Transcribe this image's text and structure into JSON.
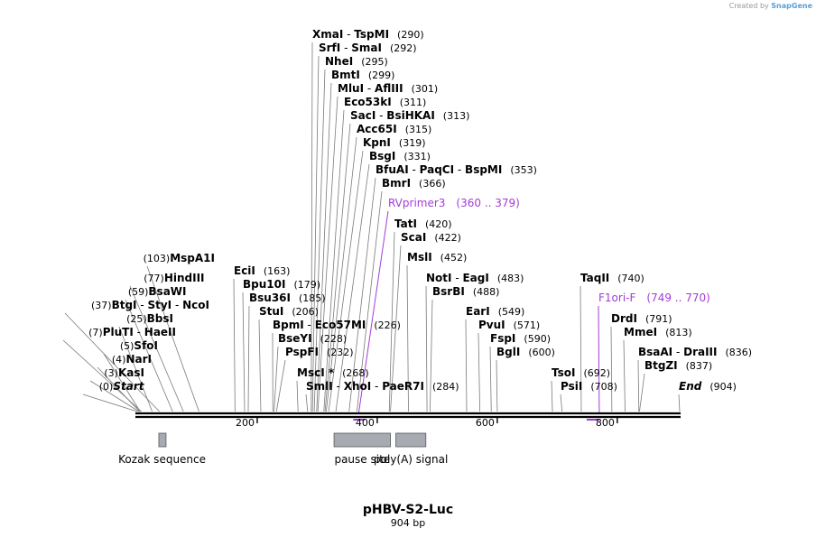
{
  "credit": {
    "prefix": "Created by",
    "brand": "SnapGene"
  },
  "title": "pHBV-S2-Luc",
  "subtitle": "904 bp",
  "length": 904,
  "ruler": [
    {
      "value": 200,
      "label": "200"
    },
    {
      "value": 400,
      "label": "400"
    },
    {
      "value": 600,
      "label": "600"
    },
    {
      "value": 800,
      "label": "800"
    }
  ],
  "features": [
    {
      "label": "Kozak sequence",
      "start": 36,
      "end": 47
    },
    {
      "label": "pause site",
      "start": 328,
      "end": 422
    },
    {
      "label": "poly(A) signal",
      "start": 431,
      "end": 481
    }
  ],
  "primers": [
    {
      "name": "RVprimer3",
      "range": "(360 .. 379)",
      "start": 360,
      "end": 379,
      "anchor": 369
    },
    {
      "name": "F1ori-F",
      "range": "(749 .. 770)",
      "start": 749,
      "end": 770,
      "anchor": 770
    }
  ],
  "sites": [
    {
      "parts": [
        "Start"
      ],
      "pos": "(0)",
      "site": 0,
      "emph": true
    },
    {
      "parts": [
        "KasI"
      ],
      "pos": "(3)",
      "site": 3
    },
    {
      "parts": [
        "NarI"
      ],
      "pos": "(4)",
      "site": 4
    },
    {
      "parts": [
        "SfoI"
      ],
      "pos": "(5)",
      "site": 5
    },
    {
      "parts": [
        "PluTI",
        "HaeII"
      ],
      "pos": "(7)",
      "site": 7
    },
    {
      "parts": [
        "BbsI"
      ],
      "pos": "(25)",
      "site": 25
    },
    {
      "parts": [
        "BtgI",
        "StyI",
        "NcoI"
      ],
      "pos": "(37)",
      "site": 37
    },
    {
      "parts": [
        "BsaWI"
      ],
      "pos": "(59)",
      "site": 59
    },
    {
      "parts": [
        "HindIII"
      ],
      "pos": "(77)",
      "site": 77
    },
    {
      "parts": [
        "MspA1I"
      ],
      "pos": "(103)",
      "site": 103
    },
    {
      "parts": [
        "EciI"
      ],
      "pos": "(163)",
      "site": 163
    },
    {
      "parts": [
        "Bpu10I"
      ],
      "pos": "(179)",
      "site": 179
    },
    {
      "parts": [
        "Bsu36I"
      ],
      "pos": "(185)",
      "site": 185
    },
    {
      "parts": [
        "StuI"
      ],
      "pos": "(206)",
      "site": 206
    },
    {
      "parts": [
        "BpmI",
        "Eco57MI"
      ],
      "pos": "(226)",
      "site": 226
    },
    {
      "parts": [
        "BseYI"
      ],
      "pos": "(228)",
      "site": 228
    },
    {
      "parts": [
        "PspFI"
      ],
      "pos": "(232)",
      "site": 232
    },
    {
      "parts": [
        "MscI *"
      ],
      "pos": "(268)",
      "site": 268
    },
    {
      "parts": [
        "SmlI",
        "XhoI",
        "PaeR7I"
      ],
      "pos": "(284)",
      "site": 284
    },
    {
      "parts": [
        "XmaI",
        "TspMI"
      ],
      "pos": "(290)",
      "site": 290
    },
    {
      "parts": [
        "SrfI",
        "SmaI"
      ],
      "pos": "(292)",
      "site": 292
    },
    {
      "parts": [
        "NheI"
      ],
      "pos": "(295)",
      "site": 295
    },
    {
      "parts": [
        "BmtI"
      ],
      "pos": "(299)",
      "site": 299
    },
    {
      "parts": [
        "MluI",
        "AflIII"
      ],
      "pos": "(301)",
      "site": 301
    },
    {
      "parts": [
        "Eco53kI"
      ],
      "pos": "(311)",
      "site": 311
    },
    {
      "parts": [
        "SacI",
        "BsiHKAI"
      ],
      "pos": "(313)",
      "site": 313
    },
    {
      "parts": [
        "Acc65I"
      ],
      "pos": "(315)",
      "site": 315
    },
    {
      "parts": [
        "KpnI"
      ],
      "pos": "(319)",
      "site": 319
    },
    {
      "parts": [
        "BsgI"
      ],
      "pos": "(331)",
      "site": 331
    },
    {
      "parts": [
        "BfuAI",
        "PaqCI",
        "BspMI"
      ],
      "pos": "(353)",
      "site": 353
    },
    {
      "parts": [
        "BmrI"
      ],
      "pos": "(366)",
      "site": 366
    },
    {
      "parts": [
        "TatI"
      ],
      "pos": "(420)",
      "site": 420
    },
    {
      "parts": [
        "ScaI"
      ],
      "pos": "(422)",
      "site": 422
    },
    {
      "parts": [
        "MslI"
      ],
      "pos": "(452)",
      "site": 452
    },
    {
      "parts": [
        "NotI",
        "EagI"
      ],
      "pos": "(483)",
      "site": 483
    },
    {
      "parts": [
        "BsrBI"
      ],
      "pos": "(488)",
      "site": 488
    },
    {
      "parts": [
        "EarI"
      ],
      "pos": "(549)",
      "site": 549
    },
    {
      "parts": [
        "PvuI"
      ],
      "pos": "(571)",
      "site": 571
    },
    {
      "parts": [
        "FspI"
      ],
      "pos": "(590)",
      "site": 590
    },
    {
      "parts": [
        "BglI"
      ],
      "pos": "(600)",
      "site": 600
    },
    {
      "parts": [
        "TsoI"
      ],
      "pos": "(692)",
      "site": 692
    },
    {
      "parts": [
        "PsiI"
      ],
      "pos": "(708)",
      "site": 708
    },
    {
      "parts": [
        "TaqII"
      ],
      "pos": "(740)",
      "site": 740
    },
    {
      "parts": [
        "DrdI"
      ],
      "pos": "(791)",
      "site": 791
    },
    {
      "parts": [
        "MmeI"
      ],
      "pos": "(813)",
      "site": 813
    },
    {
      "parts": [
        "BsaAI",
        "DraIII"
      ],
      "pos": "(836)",
      "site": 836
    },
    {
      "parts": [
        "BtgZI"
      ],
      "pos": "(837)",
      "site": 837
    },
    {
      "parts": [
        "End"
      ],
      "pos": "(904)",
      "site": 904,
      "emph": true
    }
  ]
}
